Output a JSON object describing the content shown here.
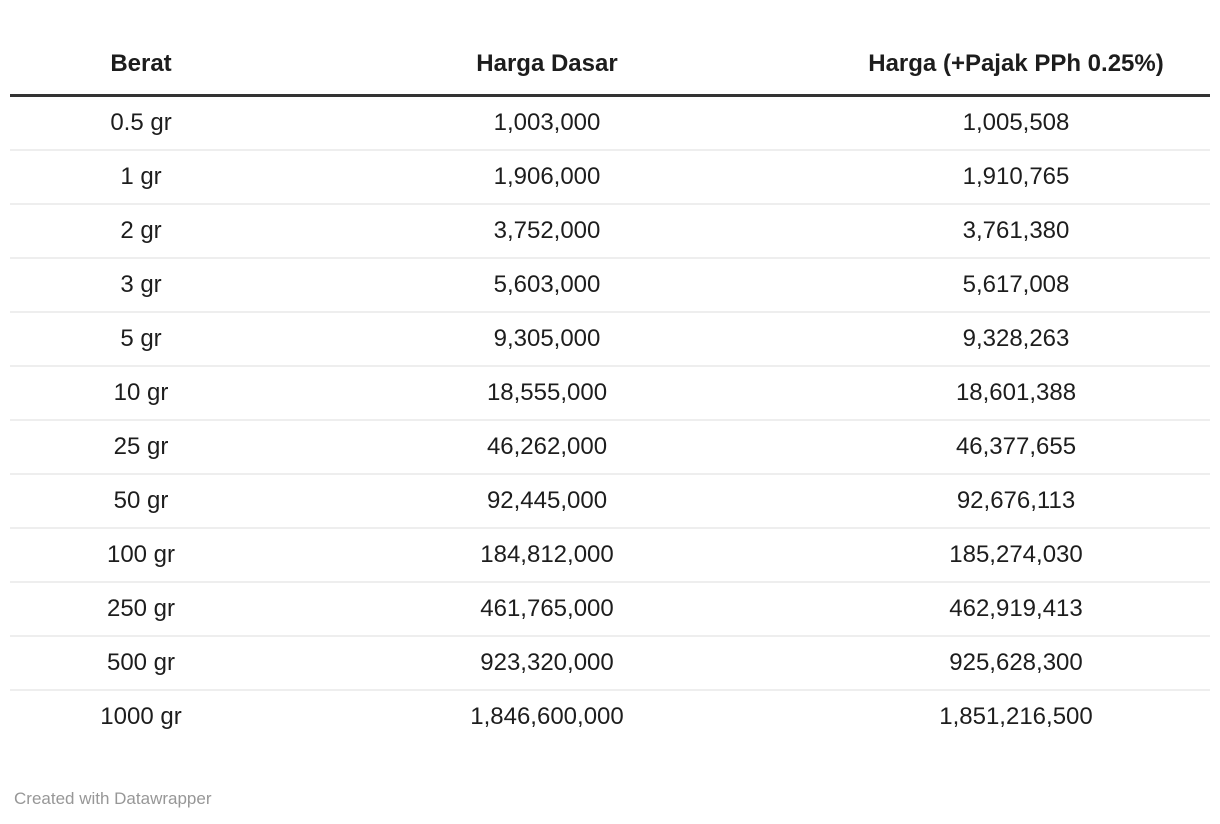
{
  "table": {
    "columns": [
      {
        "label": "Berat"
      },
      {
        "label": "Harga Dasar"
      },
      {
        "label": "Harga (+Pajak PPh 0.25%)"
      }
    ],
    "rows": [
      [
        "0.5 gr",
        "1,003,000",
        "1,005,508"
      ],
      [
        "1 gr",
        "1,906,000",
        "1,910,765"
      ],
      [
        "2 gr",
        "3,752,000",
        "3,761,380"
      ],
      [
        "3 gr",
        "5,603,000",
        "5,617,008"
      ],
      [
        "5 gr",
        "9,305,000",
        "9,328,263"
      ],
      [
        "10 gr",
        "18,555,000",
        "18,601,388"
      ],
      [
        "25 gr",
        "46,262,000",
        "46,377,655"
      ],
      [
        "50 gr",
        "92,445,000",
        "92,676,113"
      ],
      [
        "100 gr",
        "184,812,000",
        "185,274,030"
      ],
      [
        "250 gr",
        "461,765,000",
        "462,919,413"
      ],
      [
        "500 gr",
        "923,320,000",
        "925,628,300"
      ],
      [
        "1000 gr",
        "1,846,600,000",
        "1,851,216,500"
      ]
    ]
  },
  "footer": {
    "attribution": "Created with Datawrapper"
  },
  "colors": {
    "text": "#1d1d1d",
    "header_rule": "#333333",
    "row_separator": "#eeeeee",
    "attribution_text": "#979797",
    "background": "#ffffff"
  },
  "chart_data": {
    "type": "table",
    "title": "",
    "columns": [
      "Berat",
      "Harga Dasar",
      "Harga (+Pajak PPh 0.25%)"
    ],
    "rows": [
      {
        "berat": "0.5 gr",
        "harga_dasar": 1003000,
        "harga_pajak": 1005508
      },
      {
        "berat": "1 gr",
        "harga_dasar": 1906000,
        "harga_pajak": 1910765
      },
      {
        "berat": "2 gr",
        "harga_dasar": 3752000,
        "harga_pajak": 3761380
      },
      {
        "berat": "3 gr",
        "harga_dasar": 5603000,
        "harga_pajak": 5617008
      },
      {
        "berat": "5 gr",
        "harga_dasar": 9305000,
        "harga_pajak": 9328263
      },
      {
        "berat": "10 gr",
        "harga_dasar": 18555000,
        "harga_pajak": 18601388
      },
      {
        "berat": "25 gr",
        "harga_dasar": 46262000,
        "harga_pajak": 46377655
      },
      {
        "berat": "50 gr",
        "harga_dasar": 92445000,
        "harga_pajak": 92676113
      },
      {
        "berat": "100 gr",
        "harga_dasar": 184812000,
        "harga_pajak": 185274030
      },
      {
        "berat": "250 gr",
        "harga_dasar": 461765000,
        "harga_pajak": 462919413
      },
      {
        "berat": "500 gr",
        "harga_dasar": 923320000,
        "harga_pajak": 925628300
      },
      {
        "berat": "1000 gr",
        "harga_dasar": 1846600000,
        "harga_pajak": 1851216500
      }
    ],
    "layout_hints": {
      "cell_alignment": "center",
      "header_bold": true,
      "grid": "horizontal-only",
      "footer": "Created with Datawrapper"
    }
  }
}
